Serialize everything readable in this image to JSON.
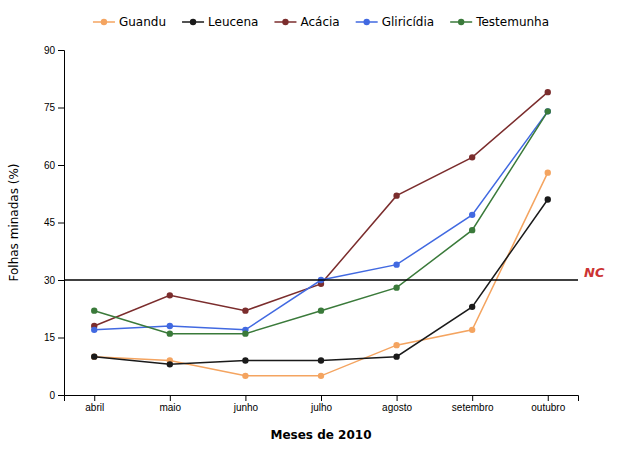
{
  "chart_data": {
    "type": "line",
    "categories": [
      "abril",
      "maio",
      "junho",
      "julho",
      "agosto",
      "setembro",
      "outubro"
    ],
    "series": [
      {
        "name": "Guandu",
        "color": "#F4A460",
        "marker": "circle",
        "values": [
          10,
          9,
          5,
          5,
          13,
          17,
          58
        ]
      },
      {
        "name": "Leucena",
        "color": "#1a1a1a",
        "marker": "circle",
        "values": [
          10,
          8,
          9,
          9,
          10,
          23,
          51
        ]
      },
      {
        "name": "Acácia",
        "color": "#7B2D2D",
        "marker": "circle",
        "values": [
          18,
          26,
          22,
          29,
          52,
          62,
          79
        ]
      },
      {
        "name": "Gliricídia",
        "color": "#4169E1",
        "marker": "circle",
        "values": [
          17,
          18,
          17,
          30,
          34,
          47,
          74
        ]
      },
      {
        "name": "Testemunha",
        "color": "#3A7A3A",
        "marker": "circle",
        "values": [
          22,
          16,
          16,
          22,
          28,
          43,
          74
        ]
      }
    ],
    "x_label": "Meses de 2010",
    "y_label": "Folhas minadas (%)",
    "ylim": [
      0,
      90
    ],
    "yticks": [
      0,
      15,
      30,
      45,
      60,
      75,
      90
    ],
    "annotations": [
      {
        "text": "NC",
        "y": 30,
        "color": "#CC3333"
      }
    ],
    "grid": false,
    "legend": "top"
  }
}
